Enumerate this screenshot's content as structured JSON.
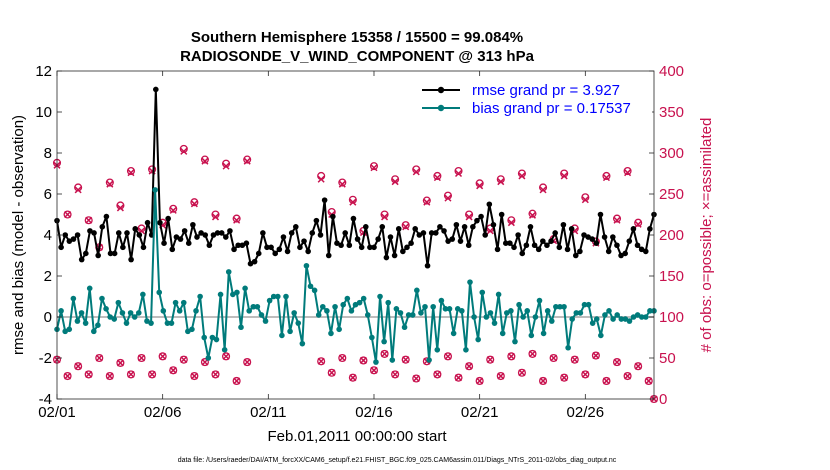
{
  "chart_data": {
    "type": "line",
    "title": "Southern Hemisphere 15358 / 15500 = 99.084%",
    "subtitle": "RADIOSONDE_V_WIND_COMPONENT @ 313 hPa",
    "xlabel": "Feb.01,2011 00:00:00 start",
    "ylabel_left": "rmse and bias (model - observation)",
    "ylabel_right": "# of obs: o=possible; ×=assimilated",
    "ylim_left": [
      -4,
      12
    ],
    "ylim_right": [
      0,
      400
    ],
    "xlim": [
      0,
      28.25
    ],
    "x_tick_values": [
      0,
      5,
      10,
      15,
      20,
      25
    ],
    "x_tick_labels": [
      "02/01",
      "02/06",
      "02/11",
      "02/16",
      "02/21",
      "02/26"
    ],
    "y_left_ticks": [
      "-4",
      "-2",
      "0",
      "2",
      "4",
      "6",
      "8",
      "10",
      "12"
    ],
    "y_right_ticks": [
      "0",
      "50",
      "100",
      "150",
      "200",
      "250",
      "300",
      "350",
      "400"
    ],
    "series": [
      {
        "name": "rmse",
        "legend": "rmse grand pr = 3.927",
        "color": "#000000",
        "axis": "left",
        "values": [
          4.7,
          3.4,
          4.0,
          3.7,
          3.8,
          4.0,
          2.8,
          3.1,
          4.2,
          4.1,
          3.0,
          4.4,
          4.9,
          3.1,
          3.1,
          4.1,
          3.4,
          4.1,
          2.8,
          4.3,
          4.0,
          3.4,
          4.6,
          4.0,
          11.1,
          4.6,
          3.6,
          4.8,
          3.3,
          3.9,
          3.8,
          4.2,
          3.6,
          4.5,
          3.9,
          4.1,
          4.0,
          3.5,
          4.0,
          4.1,
          4.1,
          3.9,
          4.2,
          3.3,
          3.5,
          3.5,
          3.6,
          2.6,
          2.7,
          3.1,
          4.1,
          3.4,
          3.4,
          3.1,
          3.3,
          3.9,
          3.2,
          4.1,
          4.4,
          3.4,
          3.7,
          3.2,
          4.1,
          4.7,
          4.0,
          5.7,
          3.0,
          4.9,
          3.6,
          3.5,
          4.1,
          3.5,
          4.8,
          3.8,
          3.4,
          4.4,
          3.4,
          3.4,
          3.8,
          4.4,
          2.9,
          3.9,
          3.0,
          4.3,
          3.2,
          3.4,
          3.6,
          4.3,
          4.0,
          4.1,
          2.5,
          4.1,
          4.1,
          4.4,
          4.2,
          3.7,
          3.8,
          4.5,
          3.7,
          4.4,
          3.5,
          4.4,
          4.7,
          4.9,
          4.0,
          5.5,
          4.5,
          3.3,
          5.0,
          3.6,
          3.6,
          3.4,
          4.0,
          3.1,
          3.5,
          4.4,
          3.5,
          3.3,
          3.7,
          3.5,
          3.7,
          4.1,
          3.4,
          4.5,
          3.3,
          4.3,
          3.0,
          3.2,
          4.0,
          3.9,
          3.8,
          3.6,
          5.0,
          3.9,
          3.2,
          3.9,
          3.5,
          3.0,
          3.1,
          3.7,
          4.3,
          3.5,
          3.3,
          3.2,
          4.3,
          5.0
        ]
      },
      {
        "name": "bias",
        "legend": "bias grand pr = 0.17537",
        "color": "#007b7b",
        "axis": "left",
        "values": [
          -0.6,
          0.3,
          -0.7,
          -0.6,
          0.9,
          -0.2,
          0.2,
          -0.3,
          1.4,
          -0.7,
          -0.4,
          0.9,
          0.4,
          0.0,
          -0.1,
          0.7,
          0.2,
          -0.3,
          0.2,
          0.0,
          0.2,
          1.1,
          -0.2,
          -0.3,
          6.2,
          1.2,
          0.3,
          -0.3,
          -0.3,
          0.7,
          0.3,
          0.7,
          -0.7,
          -0.6,
          0.3,
          1.0,
          -1.0,
          -2.0,
          -1.0,
          -1.1,
          1.1,
          -1.6,
          2.2,
          1.1,
          1.2,
          -0.5,
          1.4,
          0.3,
          0.5,
          0.5,
          0.1,
          -0.2,
          0.8,
          1.0,
          1.0,
          -0.9,
          1.0,
          -0.7,
          0.2,
          -0.3,
          -1.3,
          2.5,
          1.5,
          1.3,
          0.1,
          0.5,
          0.3,
          -0.8,
          0.5,
          -0.6,
          0.6,
          0.9,
          0.3,
          0.6,
          0.7,
          0.9,
          0.1,
          -1.0,
          -2.2,
          1.0,
          -1.2,
          0.7,
          -2.1,
          0.4,
          0.2,
          -0.5,
          0.1,
          0.1,
          1.3,
          0.2,
          0.5,
          -2.1,
          0.5,
          -1.6,
          0.8,
          0.4,
          0.4,
          -0.8,
          0.4,
          0.3,
          -1.6,
          1.7,
          0.0,
          -1.1,
          1.2,
          0.0,
          0.2,
          -0.3,
          1.1,
          -0.8,
          0.2,
          0.3,
          -1.2,
          0.6,
          0.0,
          0.3,
          -0.9,
          0.0,
          0.8,
          -0.8,
          0.3,
          -0.2,
          0.5,
          0.5,
          0.5,
          -1.5,
          -0.1,
          0.2,
          0.2,
          0.6,
          0.6,
          -0.3,
          -0.1,
          -0.9,
          0.1,
          0.3,
          -0.1,
          0.1,
          -0.1,
          -0.1,
          -0.2,
          0.0,
          0.1,
          0.0,
          0.0,
          0.3,
          0.3
        ]
      }
    ],
    "obs_possible": [
      {
        "x": 0,
        "y": 288
      },
      {
        "x": 0.5,
        "y": 225
      },
      {
        "x": 1,
        "y": 258
      },
      {
        "x": 1.5,
        "y": 218
      },
      {
        "x": 2,
        "y": 185
      },
      {
        "x": 2.5,
        "y": 264
      },
      {
        "x": 3,
        "y": 236
      },
      {
        "x": 3.5,
        "y": 278
      },
      {
        "x": 4,
        "y": 208
      },
      {
        "x": 4.5,
        "y": 280
      },
      {
        "x": 5,
        "y": 215
      },
      {
        "x": 5.5,
        "y": 232
      },
      {
        "x": 6,
        "y": 305
      },
      {
        "x": 6.5,
        "y": 240
      },
      {
        "x": 7,
        "y": 292
      },
      {
        "x": 7.5,
        "y": 225
      },
      {
        "x": 8,
        "y": 287
      },
      {
        "x": 8.5,
        "y": 220
      },
      {
        "x": 9,
        "y": 292
      },
      {
        "x": 12.5,
        "y": 272
      },
      {
        "x": 13,
        "y": 228
      },
      {
        "x": 13.5,
        "y": 264
      },
      {
        "x": 14,
        "y": 243
      },
      {
        "x": 14.5,
        "y": 205
      },
      {
        "x": 15,
        "y": 284
      },
      {
        "x": 15.5,
        "y": 225
      },
      {
        "x": 16,
        "y": 268
      },
      {
        "x": 16.5,
        "y": 212
      },
      {
        "x": 17,
        "y": 280
      },
      {
        "x": 17.5,
        "y": 242
      },
      {
        "x": 18,
        "y": 272
      },
      {
        "x": 18.5,
        "y": 248
      },
      {
        "x": 19,
        "y": 278
      },
      {
        "x": 19.5,
        "y": 225
      },
      {
        "x": 20,
        "y": 263
      },
      {
        "x": 20.5,
        "y": 208
      },
      {
        "x": 21,
        "y": 268
      },
      {
        "x": 21.5,
        "y": 218
      },
      {
        "x": 22,
        "y": 275
      },
      {
        "x": 22.5,
        "y": 226
      },
      {
        "x": 23,
        "y": 258
      },
      {
        "x": 23.5,
        "y": 195
      },
      {
        "x": 24,
        "y": 275
      },
      {
        "x": 24.5,
        "y": 208
      },
      {
        "x": 25,
        "y": 246
      },
      {
        "x": 25.5,
        "y": 192
      },
      {
        "x": 26,
        "y": 272
      },
      {
        "x": 26.5,
        "y": 220
      },
      {
        "x": 27,
        "y": 278
      },
      {
        "x": 27.5,
        "y": 215
      }
    ],
    "obs_assimilated": [
      {
        "x": 0,
        "y": 285
      },
      {
        "x": 0.5,
        "y": 225
      },
      {
        "x": 1,
        "y": 255
      },
      {
        "x": 1.5,
        "y": 218
      },
      {
        "x": 2,
        "y": 185
      },
      {
        "x": 2.5,
        "y": 262
      },
      {
        "x": 3,
        "y": 233
      },
      {
        "x": 3.5,
        "y": 276
      },
      {
        "x": 4,
        "y": 205
      },
      {
        "x": 4.5,
        "y": 278
      },
      {
        "x": 5,
        "y": 212
      },
      {
        "x": 5.5,
        "y": 230
      },
      {
        "x": 6,
        "y": 302
      },
      {
        "x": 6.5,
        "y": 238
      },
      {
        "x": 7,
        "y": 290
      },
      {
        "x": 7.5,
        "y": 222
      },
      {
        "x": 8,
        "y": 284
      },
      {
        "x": 8.5,
        "y": 218
      },
      {
        "x": 9,
        "y": 290
      },
      {
        "x": 12.5,
        "y": 268
      },
      {
        "x": 13,
        "y": 225
      },
      {
        "x": 13.5,
        "y": 262
      },
      {
        "x": 14,
        "y": 240
      },
      {
        "x": 14.5,
        "y": 203
      },
      {
        "x": 15,
        "y": 282
      },
      {
        "x": 15.5,
        "y": 222
      },
      {
        "x": 16,
        "y": 265
      },
      {
        "x": 16.5,
        "y": 210
      },
      {
        "x": 17,
        "y": 277
      },
      {
        "x": 17.5,
        "y": 240
      },
      {
        "x": 18,
        "y": 270
      },
      {
        "x": 18.5,
        "y": 245
      },
      {
        "x": 19,
        "y": 275
      },
      {
        "x": 19.5,
        "y": 222
      },
      {
        "x": 20,
        "y": 260
      },
      {
        "x": 20.5,
        "y": 205
      },
      {
        "x": 21,
        "y": 265
      },
      {
        "x": 21.5,
        "y": 215
      },
      {
        "x": 22,
        "y": 272
      },
      {
        "x": 22.5,
        "y": 224
      },
      {
        "x": 23,
        "y": 255
      },
      {
        "x": 23.5,
        "y": 193
      },
      {
        "x": 24,
        "y": 272
      },
      {
        "x": 24.5,
        "y": 205
      },
      {
        "x": 25,
        "y": 243
      },
      {
        "x": 25.5,
        "y": 190
      },
      {
        "x": 26,
        "y": 270
      },
      {
        "x": 26.5,
        "y": 218
      },
      {
        "x": 27,
        "y": 276
      },
      {
        "x": 27.5,
        "y": 213
      }
    ],
    "obs_low_possible": [
      {
        "x": 0,
        "y": 48
      },
      {
        "x": 0.5,
        "y": 28
      },
      {
        "x": 1,
        "y": 40
      },
      {
        "x": 1.5,
        "y": 30
      },
      {
        "x": 2,
        "y": 50
      },
      {
        "x": 2.5,
        "y": 28
      },
      {
        "x": 3,
        "y": 44
      },
      {
        "x": 3.5,
        "y": 30
      },
      {
        "x": 4,
        "y": 50
      },
      {
        "x": 4.5,
        "y": 30
      },
      {
        "x": 5,
        "y": 52
      },
      {
        "x": 5.5,
        "y": 35
      },
      {
        "x": 6,
        "y": 48
      },
      {
        "x": 6.5,
        "y": 28
      },
      {
        "x": 7,
        "y": 45
      },
      {
        "x": 7.5,
        "y": 30
      },
      {
        "x": 8,
        "y": 52
      },
      {
        "x": 8.5,
        "y": 22
      },
      {
        "x": 9,
        "y": 45
      },
      {
        "x": 12.5,
        "y": 46
      },
      {
        "x": 13,
        "y": 32
      },
      {
        "x": 13.5,
        "y": 50
      },
      {
        "x": 14,
        "y": 26
      },
      {
        "x": 14.5,
        "y": 47
      },
      {
        "x": 15,
        "y": 35
      },
      {
        "x": 15.5,
        "y": 55
      },
      {
        "x": 16,
        "y": 30
      },
      {
        "x": 16.5,
        "y": 48
      },
      {
        "x": 17,
        "y": 25
      },
      {
        "x": 17.5,
        "y": 46
      },
      {
        "x": 18,
        "y": 30
      },
      {
        "x": 18.5,
        "y": 52
      },
      {
        "x": 19,
        "y": 26
      },
      {
        "x": 19.5,
        "y": 40
      },
      {
        "x": 20,
        "y": 22
      },
      {
        "x": 20.5,
        "y": 48
      },
      {
        "x": 21,
        "y": 28
      },
      {
        "x": 21.5,
        "y": 52
      },
      {
        "x": 22,
        "y": 32
      },
      {
        "x": 22.5,
        "y": 55
      },
      {
        "x": 23,
        "y": 22
      },
      {
        "x": 23.5,
        "y": 50
      },
      {
        "x": 24,
        "y": 26
      },
      {
        "x": 24.5,
        "y": 48
      },
      {
        "x": 25,
        "y": 30
      },
      {
        "x": 25.5,
        "y": 53
      },
      {
        "x": 26,
        "y": 22
      },
      {
        "x": 26.5,
        "y": 45
      },
      {
        "x": 27,
        "y": 28
      },
      {
        "x": 27.5,
        "y": 40
      },
      {
        "x": 28,
        "y": 22
      },
      {
        "x": 28.25,
        "y": 0
      }
    ]
  },
  "footer": {
    "data_file": "data file: /Users/raeder/DAI/ATM_forcXX/CAM6_setup/f.e21.FHIST_BGC.f09_025.CAM6assim.011/Diags_NTrS_2011-02/obs_diag_output.nc"
  }
}
